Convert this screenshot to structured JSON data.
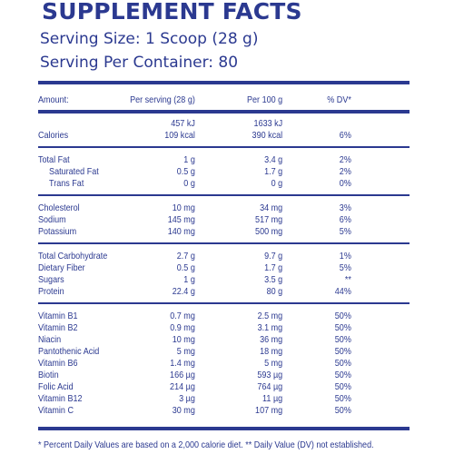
{
  "title": "SUPPLEMENT FACTS",
  "serving_size": "Serving Size: 1 Scoop (28 g)",
  "servings_per_container": "Serving Per Container: 80",
  "header": {
    "amount": "Amount:",
    "per_serving": "Per serving (28 g)",
    "per_100g": "Per 100 g",
    "dv": "% DV*"
  },
  "energy": {
    "ps_kj": "457  kJ",
    "p100_kj": "1633 kJ"
  },
  "rows": {
    "calories": {
      "name": "Calories",
      "ps": "109 kcal",
      "p100": "390 kcal",
      "dv": "6%"
    },
    "total_fat": {
      "name": "Total Fat",
      "ps": "1 g",
      "p100": "3.4 g",
      "dv": "2%"
    },
    "saturated_fat": {
      "name": "Saturated Fat",
      "ps": "0.5 g",
      "p100": "1.7 g",
      "dv": "2%"
    },
    "trans_fat": {
      "name": "Trans Fat",
      "ps": "0 g",
      "p100": "0 g",
      "dv": "0%"
    },
    "cholesterol": {
      "name": "Cholesterol",
      "ps": "10 mg",
      "p100": "34 mg",
      "dv": "3%"
    },
    "sodium": {
      "name": "Sodium",
      "ps": "145 mg",
      "p100": "517 mg",
      "dv": "6%"
    },
    "potassium": {
      "name": "Potassium",
      "ps": "140 mg",
      "p100": "500 mg",
      "dv": "5%"
    },
    "total_carb": {
      "name": "Total Carbohydrate",
      "ps": "2.7 g",
      "p100": "9.7 g",
      "dv": "1%"
    },
    "dietary_fiber": {
      "name": "Dietary Fiber",
      "ps": "0.5 g",
      "p100": "1.7 g",
      "dv": "5%"
    },
    "sugars": {
      "name": "Sugars",
      "ps": "1 g",
      "p100": "3.5 g",
      "dv": "**"
    },
    "protein": {
      "name": "Protein",
      "ps": "22.4 g",
      "p100": "80 g",
      "dv": "44%"
    },
    "b1": {
      "name": "Vitamin B1",
      "ps": "0.7 mg",
      "p100": "2.5 mg",
      "dv": "50%"
    },
    "b2": {
      "name": "Vitamin B2",
      "ps": "0.9 mg",
      "p100": "3.1 mg",
      "dv": "50%"
    },
    "niacin": {
      "name": "Niacin",
      "ps": "10 mg",
      "p100": "36 mg",
      "dv": "50%"
    },
    "pantothenic": {
      "name": "Pantothenic Acid",
      "ps": "5 mg",
      "p100": "18 mg",
      "dv": "50%"
    },
    "b6": {
      "name": "Vitamin B6",
      "ps": "1.4 mg",
      "p100": "5 mg",
      "dv": "50%"
    },
    "biotin": {
      "name": "Biotin",
      "ps": "166 µg",
      "p100": "593 µg",
      "dv": "50%"
    },
    "folic": {
      "name": "Folic Acid",
      "ps": "214 µg",
      "p100": "764 µg",
      "dv": "50%"
    },
    "b12": {
      "name": "Vitamin B12",
      "ps": "3 µg",
      "p100": "11 µg",
      "dv": "50%"
    },
    "vitc": {
      "name": "Vitamin C",
      "ps": "30 mg",
      "p100": "107 mg",
      "dv": "50%"
    }
  },
  "footnote": "* Percent Daily Values are based on a 2,000 calorie diet. ** Daily Value (DV) not established.",
  "colors": {
    "text": "#2b3990",
    "rule": "#2b3990",
    "background": "#ffffff"
  }
}
